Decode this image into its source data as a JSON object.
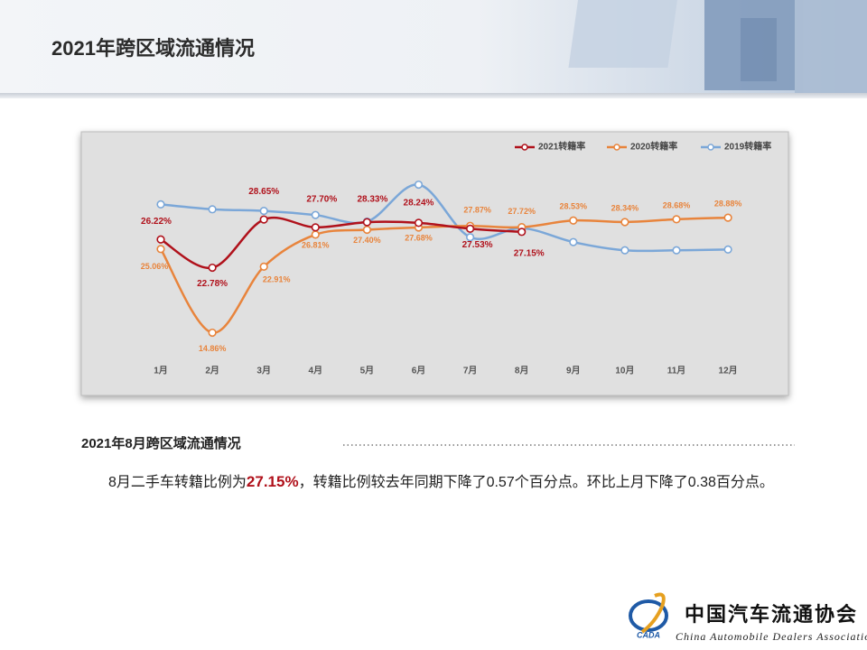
{
  "header": {
    "title": "2021年跨区域流通情况"
  },
  "chart_data": {
    "type": "line",
    "categories": [
      "1月",
      "2月",
      "3月",
      "4月",
      "5月",
      "6月",
      "7月",
      "8月",
      "9月",
      "10月",
      "11月",
      "12月"
    ],
    "series": [
      {
        "name": "2021转籍率",
        "color": "#b0111b",
        "values": [
          26.22,
          22.78,
          28.65,
          27.7,
          28.33,
          28.24,
          27.53,
          27.15,
          null,
          null,
          null,
          null
        ],
        "value_labels": [
          "26.22%",
          "22.78%",
          "28.65%",
          "27.70%",
          "28.33%",
          "28.24%",
          "27.53%",
          "27.15%",
          null,
          null,
          null,
          null
        ]
      },
      {
        "name": "2020转籍率",
        "color": "#e8843c",
        "values": [
          25.06,
          14.86,
          22.91,
          26.81,
          27.4,
          27.68,
          27.87,
          27.72,
          28.53,
          28.34,
          28.68,
          28.88
        ],
        "value_labels": [
          "25.06%",
          "14.86%",
          "22.91%",
          "26.81%",
          "27.40%",
          "27.68%",
          "27.87%",
          "27.72%",
          "28.53%",
          "28.34%",
          "28.68%",
          "28.88%"
        ]
      },
      {
        "name": "2019转籍率",
        "color": "#7ba7d8",
        "values": [
          30.5,
          29.9,
          29.7,
          29.2,
          28.4,
          32.9,
          26.5,
          27.6,
          25.9,
          24.9,
          24.9,
          25.0
        ]
      }
    ],
    "ylim": [
      12.5,
      34.5
    ]
  },
  "section": {
    "heading": "2021年8月跨区域流通情况",
    "paragraph": [
      "8月二手车转籍比例为",
      "27.15%",
      "，转籍比例较去年同期下降了0.57个百分点。环比上月下降了0.38百分点。"
    ]
  },
  "logo": {
    "abbr": "CADA",
    "name_cn": "中国汽车流通协会",
    "name_en": "China Automobile Dealers Association"
  }
}
